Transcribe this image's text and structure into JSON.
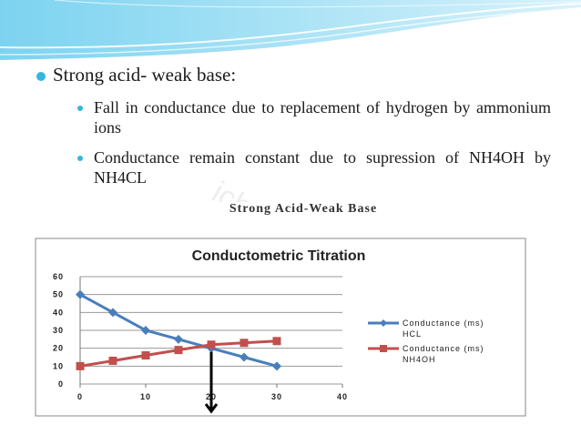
{
  "slide": {
    "heading": "Strong acid- weak base:",
    "points": [
      "Fall in conductance due to replacement of hydrogen by ammonium ions",
      "Conductance remain constant due to supression of NH4OH by NH4CL"
    ],
    "watermark": "ichno"
  },
  "colors": {
    "accent": "#35b5e0",
    "hcl": "#4a7ebb",
    "nh4oh": "#c0504d"
  },
  "chart_data": {
    "type": "line",
    "image_caption": "Strong Acid-Weak Base",
    "title": "Conductometric Titration",
    "xlabel": "",
    "ylabel": "",
    "xlim": [
      0,
      40
    ],
    "ylim": [
      0,
      60
    ],
    "x_ticks": [
      0,
      10,
      20,
      30,
      40
    ],
    "y_ticks": [
      0,
      10,
      20,
      30,
      40,
      50,
      60
    ],
    "grid": "horizontal",
    "legend_position": "right",
    "series": [
      {
        "name": "Conductance (ms) HCL",
        "legend_lines": [
          "Conductance (ms)",
          "HCL"
        ],
        "color": "#4a7ebb",
        "marker": "diamond",
        "x": [
          0,
          5,
          10,
          15,
          20,
          25,
          30
        ],
        "values": [
          50,
          40,
          30,
          25,
          20,
          15,
          10
        ]
      },
      {
        "name": "Conductance (ms) NH4OH",
        "legend_lines": [
          "Conductance (ms)",
          "NH4OH"
        ],
        "color": "#c0504d",
        "marker": "square",
        "x": [
          0,
          5,
          10,
          15,
          20,
          25,
          30
        ],
        "values": [
          10,
          13,
          16,
          19,
          22,
          23,
          24
        ]
      }
    ],
    "annotations": [
      {
        "type": "down-arrow",
        "x": 20
      }
    ]
  }
}
